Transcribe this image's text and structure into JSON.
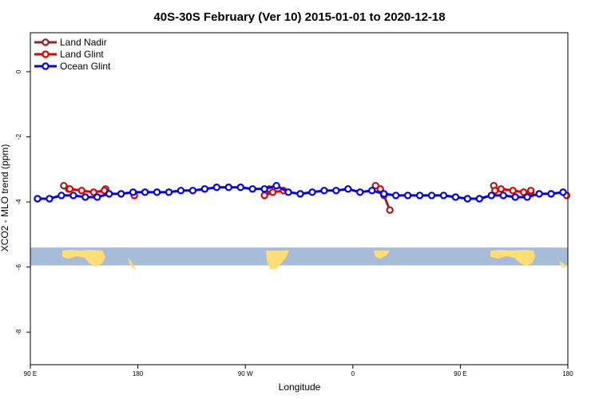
{
  "chart_data": {
    "type": "line",
    "title": "40S-30S February (Ver 10)   2015-01-01 to 2020-12-18",
    "xlabel": "Longitude",
    "ylabel": "XCO2 - MLO trend (ppm)",
    "xlim": [
      90,
      540
    ],
    "ylim": [
      -9.0,
      1.2
    ],
    "x_ticks": [
      {
        "value": 90,
        "label": "90 E"
      },
      {
        "value": 180,
        "label": "180"
      },
      {
        "value": 270,
        "label": "90 W"
      },
      {
        "value": 360,
        "label": "0"
      },
      {
        "value": 450,
        "label": "90 E"
      },
      {
        "value": 540,
        "label": "180"
      }
    ],
    "y_ticks": [
      {
        "value": 0,
        "label": "0"
      },
      {
        "value": -2,
        "label": "-2"
      },
      {
        "value": -4,
        "label": "-4"
      },
      {
        "value": -6,
        "label": "-6"
      },
      {
        "value": -8,
        "label": "-8"
      }
    ],
    "legend_position": "top-left",
    "map_strip": {
      "y_range": [
        -5.4,
        -5.95
      ],
      "ocean_color": "#a7bcd9",
      "land_color": "#ffdd77"
    },
    "series": [
      {
        "name": "Land Nadir",
        "color": "#962323",
        "segments": [
          [
            [
              118,
              -3.5
            ],
            [
              122,
              -3.6
            ]
          ],
          [
            [
              153,
              -3.6
            ]
          ],
          [
            [
              287,
              -3.65
            ],
            [
              290,
              -3.6
            ]
          ],
          [
            [
              379,
              -3.5
            ],
            [
              386,
              -3.8
            ],
            [
              391,
              -4.25
            ]
          ],
          [
            [
              478,
              -3.5
            ]
          ],
          [
            [
              509,
              -3.7
            ]
          ]
        ]
      },
      {
        "name": "Land Glint",
        "color": "#e00000",
        "segments": [
          [
            [
              123,
              -3.6
            ],
            [
              133,
              -3.65
            ],
            [
              143,
              -3.7
            ],
            [
              152,
              -3.65
            ]
          ],
          [
            [
              177,
              -3.8
            ]
          ],
          [
            [
              286,
              -3.8
            ],
            [
              293,
              -3.7
            ],
            [
              302,
              -3.65
            ]
          ],
          [
            [
              383,
              -3.6
            ]
          ],
          [
            [
              479,
              -3.65
            ],
            [
              484,
              -3.6
            ],
            [
              494,
              -3.65
            ],
            [
              503,
              -3.7
            ],
            [
              509,
              -3.65
            ]
          ],
          [
            [
              539,
              -3.8
            ]
          ]
        ]
      },
      {
        "name": "Ocean Glint",
        "color": "#0000e0",
        "segments": [
          [
            [
              96,
              -3.9
            ],
            [
              106,
              -3.9
            ],
            [
              116,
              -3.8
            ],
            [
              126,
              -3.8
            ],
            [
              136,
              -3.85
            ],
            [
              146,
              -3.85
            ],
            [
              156,
              -3.75
            ],
            [
              166,
              -3.75
            ],
            [
              176,
              -3.7
            ],
            [
              186,
              -3.7
            ],
            [
              196,
              -3.7
            ],
            [
              206,
              -3.7
            ],
            [
              216,
              -3.65
            ],
            [
              226,
              -3.65
            ],
            [
              236,
              -3.6
            ],
            [
              246,
              -3.55
            ],
            [
              256,
              -3.55
            ],
            [
              266,
              -3.55
            ],
            [
              276,
              -3.6
            ],
            [
              286,
              -3.6
            ],
            [
              296,
              -3.5
            ],
            [
              306,
              -3.7
            ],
            [
              316,
              -3.75
            ],
            [
              326,
              -3.7
            ],
            [
              336,
              -3.65
            ],
            [
              346,
              -3.65
            ],
            [
              356,
              -3.6
            ],
            [
              366,
              -3.7
            ],
            [
              376,
              -3.65
            ],
            [
              386,
              -3.75
            ],
            [
              396,
              -3.8
            ],
            [
              406,
              -3.8
            ],
            [
              416,
              -3.8
            ],
            [
              426,
              -3.8
            ],
            [
              436,
              -3.8
            ],
            [
              446,
              -3.85
            ],
            [
              456,
              -3.9
            ],
            [
              466,
              -3.9
            ],
            [
              476,
              -3.8
            ],
            [
              486,
              -3.8
            ],
            [
              496,
              -3.85
            ],
            [
              506,
              -3.85
            ],
            [
              516,
              -3.75
            ],
            [
              526,
              -3.75
            ],
            [
              536,
              -3.7
            ]
          ]
        ]
      }
    ]
  }
}
